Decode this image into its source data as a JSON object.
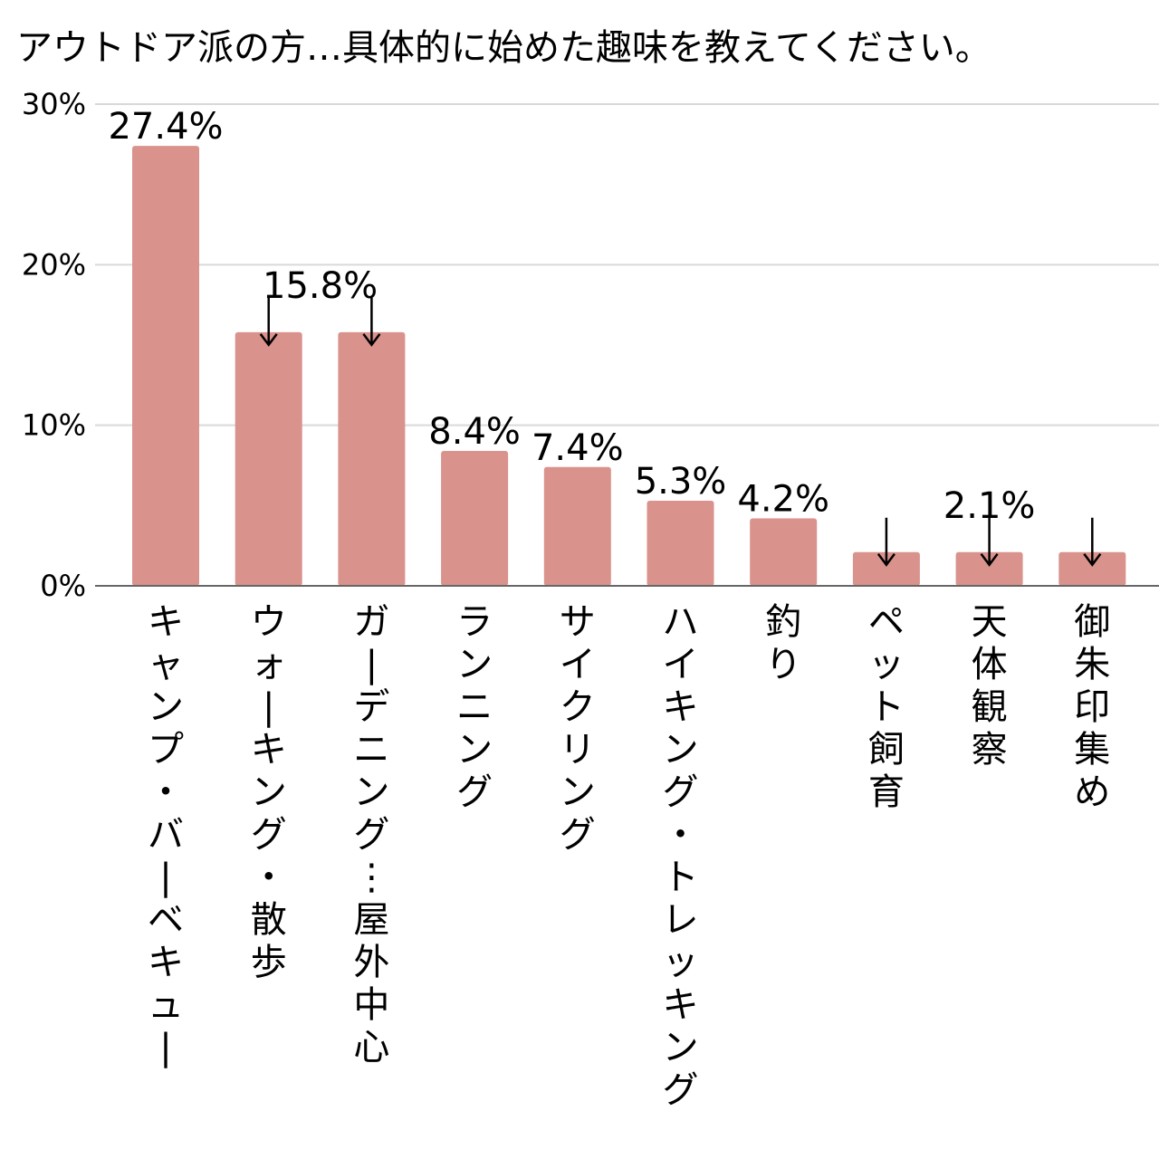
{
  "chart_data": {
    "type": "bar",
    "title": "アウトドア派の方…具体的に始めた趣味を教えてください。",
    "xlabel": "",
    "ylabel": "",
    "ylim": [
      0,
      30
    ],
    "yticks": [
      0,
      10,
      20,
      30
    ],
    "ytick_labels": [
      "0%",
      "10%",
      "20%",
      "30%"
    ],
    "grid": true,
    "legend": "none",
    "categories": [
      "キャンプ・バーベキュー",
      "ウォーキング・散歩",
      "ガーデニング…屋外中心",
      "ランニング",
      "サイクリング",
      "ハイキング・トレッキング",
      "釣り",
      "ペット飼育",
      "天体観察",
      "御朱印集め"
    ],
    "values": [
      27.4,
      15.8,
      15.8,
      8.4,
      7.4,
      5.3,
      4.2,
      2.1,
      2.1,
      2.1
    ],
    "value_labels": [
      {
        "text": "27.4%",
        "bars": [
          0
        ],
        "arrows": false
      },
      {
        "text": "15.8%",
        "bars": [
          1,
          2
        ],
        "arrows": true
      },
      {
        "text": "8.4%",
        "bars": [
          3
        ],
        "arrows": false
      },
      {
        "text": "7.4%",
        "bars": [
          4
        ],
        "arrows": false
      },
      {
        "text": "5.3%",
        "bars": [
          5
        ],
        "arrows": false
      },
      {
        "text": "4.2%",
        "bars": [
          6
        ],
        "arrows": false
      },
      {
        "text": "2.1%",
        "bars": [
          7,
          8,
          9
        ],
        "arrows": true
      }
    ],
    "colors": {
      "bar": "#d9928c",
      "grid": "#d9d9d9",
      "axis": "#666666",
      "text": "#000000"
    }
  }
}
